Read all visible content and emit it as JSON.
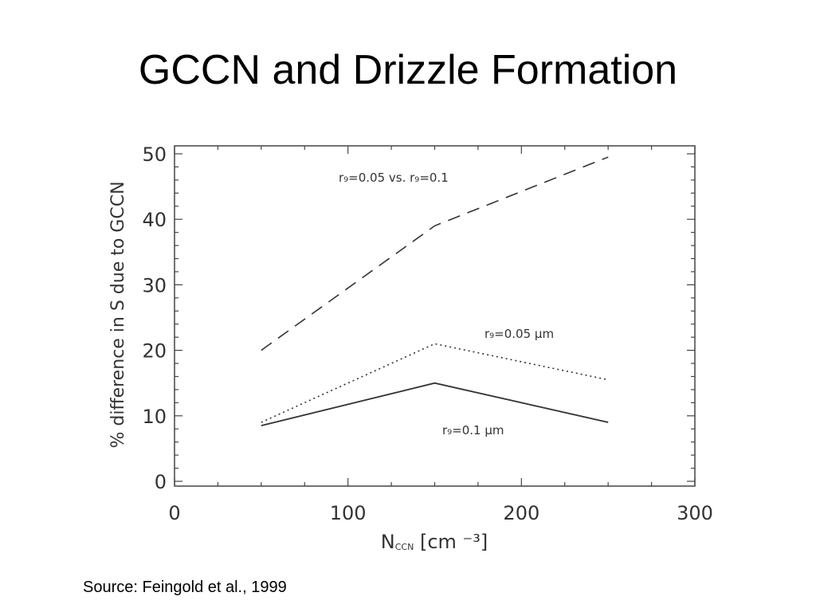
{
  "slide": {
    "title": "GCCN and Drizzle Formation",
    "source": "Source:  Feingold et al., 1999"
  },
  "chart_data": {
    "type": "line",
    "xlabel_main": "N",
    "xlabel_sub": "CCN",
    "xlabel_unit": "[cm ⁻³]",
    "ylabel": "% difference in S due to GCCN",
    "xlim": [
      0,
      300
    ],
    "ylim": [
      0,
      50
    ],
    "xticks": [
      0,
      100,
      200,
      300
    ],
    "yticks": [
      0,
      10,
      20,
      30,
      40,
      50
    ],
    "grid": false,
    "series": [
      {
        "label": "r₉=0.05 vs. r₉=0.1",
        "style": "dashed",
        "x": [
          50,
          150,
          250
        ],
        "y": [
          20,
          39,
          49.5
        ]
      },
      {
        "label": "r₉=0.05 μm",
        "style": "dotted",
        "x": [
          50,
          150,
          250
        ],
        "y": [
          9,
          21,
          15.5
        ]
      },
      {
        "label": "r₉=0.1 μm",
        "style": "solid",
        "x": [
          50,
          150,
          250
        ],
        "y": [
          8.5,
          15,
          9
        ]
      }
    ],
    "colors": {
      "axis": "#444444",
      "line": "#333333"
    }
  }
}
